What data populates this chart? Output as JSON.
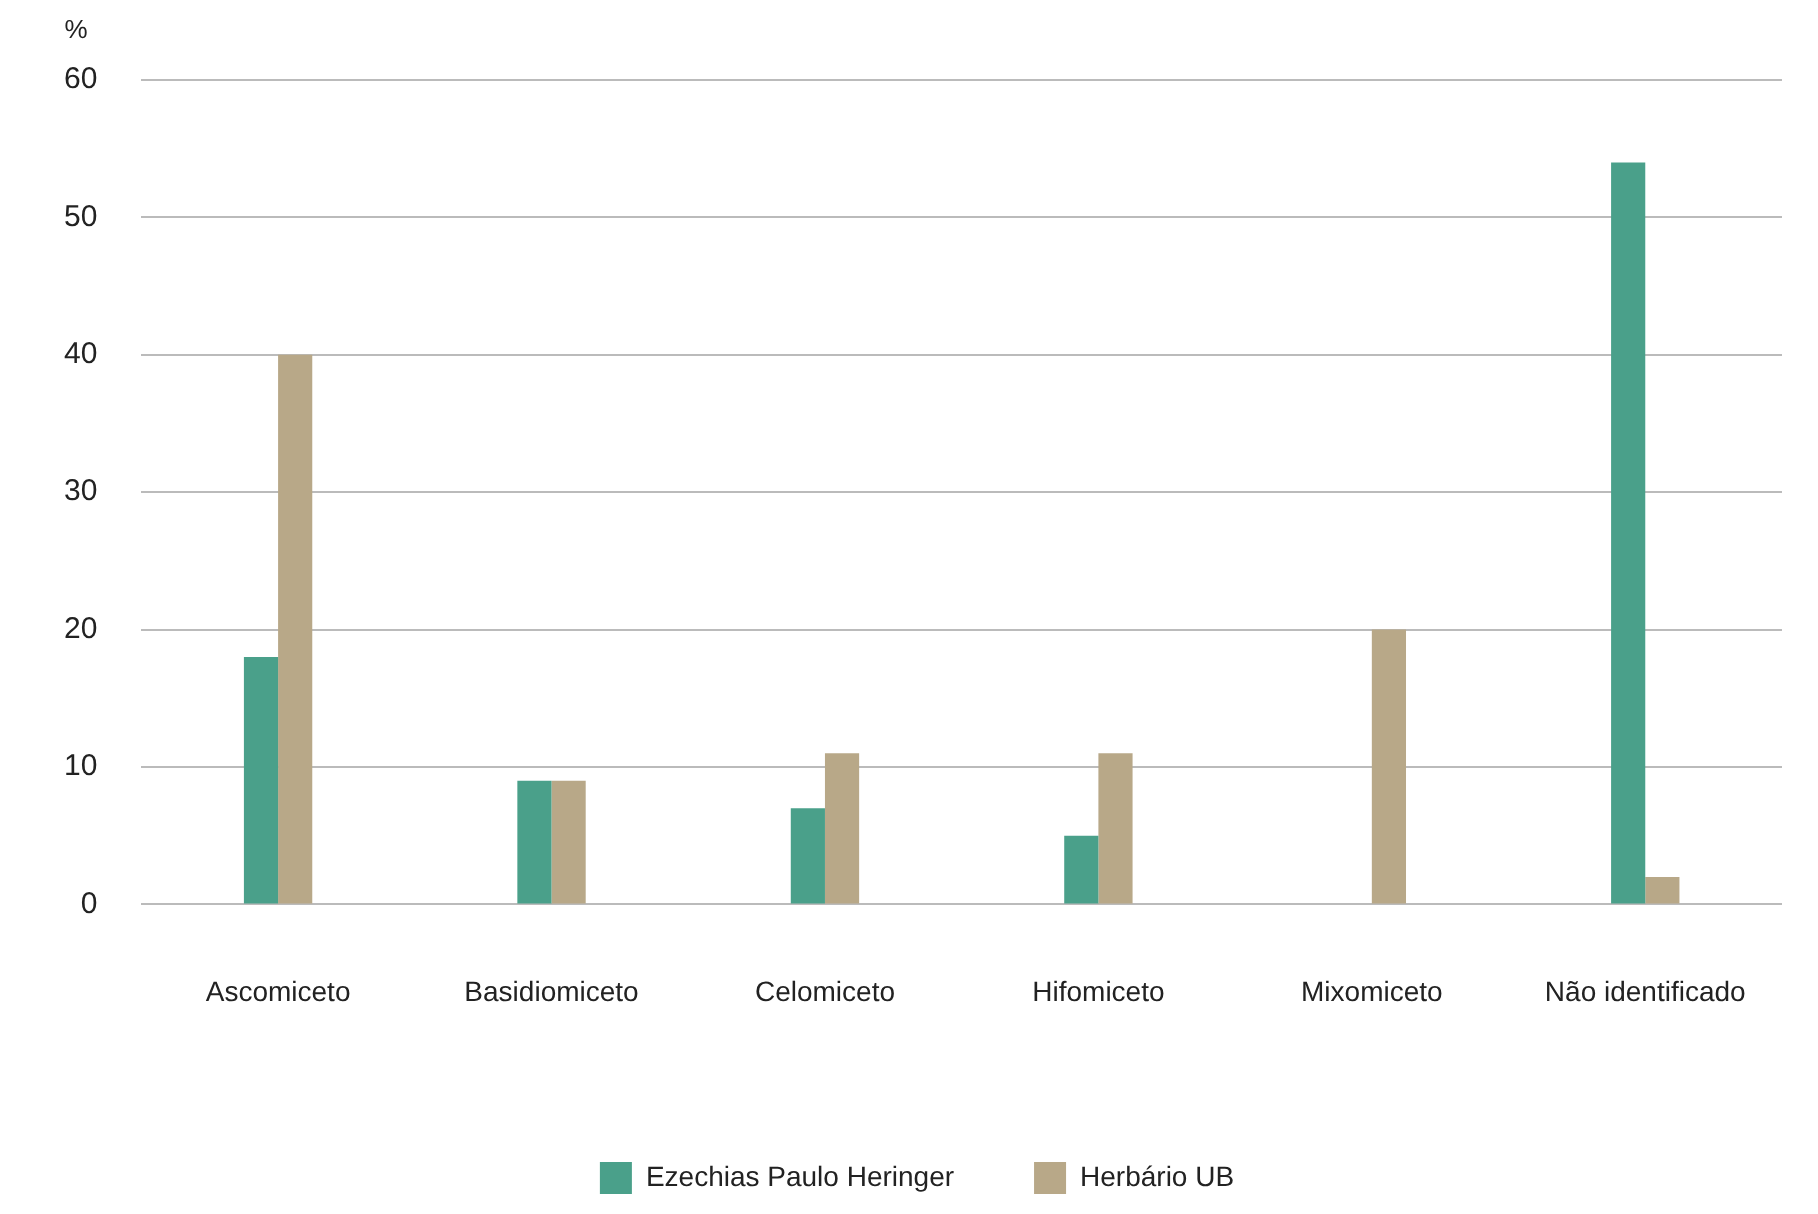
{
  "chart_data": {
    "type": "bar",
    "ylabel": "%",
    "categories": [
      "Ascomiceto",
      "Basidiomiceto",
      "Celomiceto",
      "Hifomiceto",
      "Mixomiceto",
      "Não identificado"
    ],
    "series": [
      {
        "name": "Ezechias Paulo Heringer",
        "color": "#4aa08a",
        "values": [
          18,
          9,
          7,
          5,
          0,
          54
        ]
      },
      {
        "name": "Herbário UB",
        "color": "#b8a888",
        "values": [
          40,
          9,
          11,
          11,
          20,
          2
        ]
      }
    ],
    "ylim": [
      0,
      60
    ],
    "yticks": [
      0,
      10,
      20,
      30,
      40,
      50,
      60
    ],
    "grid": "y",
    "legend": "bottom"
  }
}
